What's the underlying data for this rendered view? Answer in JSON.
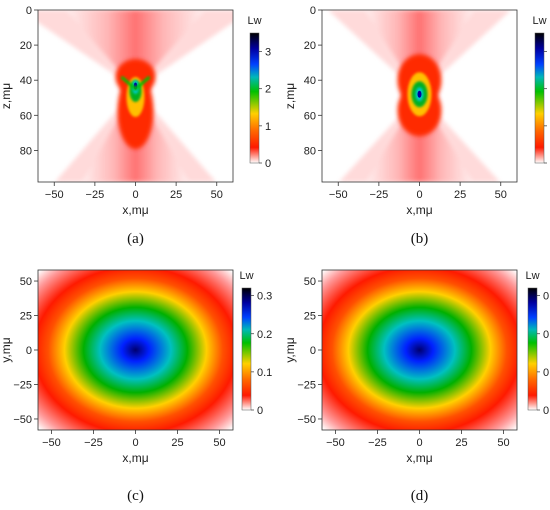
{
  "colorbar_stops": [
    "#ffffff",
    "#ff1a00",
    "#ff6a00",
    "#ffd000",
    "#00c000",
    "#00b8b8",
    "#0040ff",
    "#0000a0",
    "#000000"
  ],
  "chart_data": [
    {
      "type": "heatmap",
      "caption": "(a)",
      "view": "xz",
      "pattern": "focus-wide",
      "xlabel": "x,mμ",
      "ylabel": "z,mμ",
      "xticks": [
        -50,
        -25,
        0,
        25,
        50
      ],
      "yticks": [
        0,
        20,
        40,
        60,
        80
      ],
      "xlim": [
        -60,
        60
      ],
      "ylim": [
        0,
        98
      ],
      "y_inverted": true,
      "focus": {
        "x": 0,
        "z": 45
      },
      "peak_value": 3.4,
      "colorbar": {
        "label": "Lw",
        "min": 0,
        "max": 3.5,
        "ticks": [
          0,
          1,
          2,
          3
        ]
      }
    },
    {
      "type": "heatmap",
      "caption": "(b)",
      "view": "xz",
      "pattern": "focus-narrow",
      "xlabel": "x,mμ",
      "ylabel": "z,mμ",
      "xticks": [
        -50,
        -25,
        0,
        25,
        50
      ],
      "yticks": [
        0,
        20,
        40,
        60,
        80
      ],
      "xlim": [
        -60,
        60
      ],
      "ylim": [
        0,
        98
      ],
      "y_inverted": true,
      "focus": {
        "x": 0,
        "z": 48
      },
      "peak_value": 3.5,
      "colorbar": {
        "label": "Lw",
        "min": 0,
        "max": 3.5,
        "ticks": [
          0,
          1,
          2,
          3
        ]
      }
    },
    {
      "type": "heatmap",
      "caption": "(c)",
      "view": "xy",
      "pattern": "radial",
      "xlabel": "x,mμ",
      "ylabel": "y,mμ",
      "xticks": [
        -50,
        -25,
        0,
        25,
        50
      ],
      "yticks": [
        50,
        25,
        0,
        -25,
        -50
      ],
      "xlim": [
        -58,
        58
      ],
      "ylim": [
        -58,
        58
      ],
      "center": {
        "x": 0,
        "y": 0
      },
      "peak_value": 0.31,
      "colorbar": {
        "label": "Lw",
        "min": 0,
        "max": 0.32,
        "ticks": [
          0,
          0.1,
          0.2,
          0.3
        ]
      }
    },
    {
      "type": "heatmap",
      "caption": "(d)",
      "view": "xy",
      "pattern": "radial",
      "xlabel": "x,mμ",
      "ylabel": "y,mμ",
      "xticks": [
        -50,
        -25,
        0,
        25,
        50
      ],
      "yticks": [
        50,
        25,
        0,
        -25,
        -50
      ],
      "xlim": [
        -58,
        58
      ],
      "ylim": [
        -58,
        58
      ],
      "center": {
        "x": 0,
        "y": 0
      },
      "peak_value": 0.32,
      "colorbar": {
        "label": "Lw",
        "min": 0,
        "max": 0.32,
        "ticks": [
          0,
          0.1,
          0.2,
          0.3
        ]
      }
    }
  ]
}
